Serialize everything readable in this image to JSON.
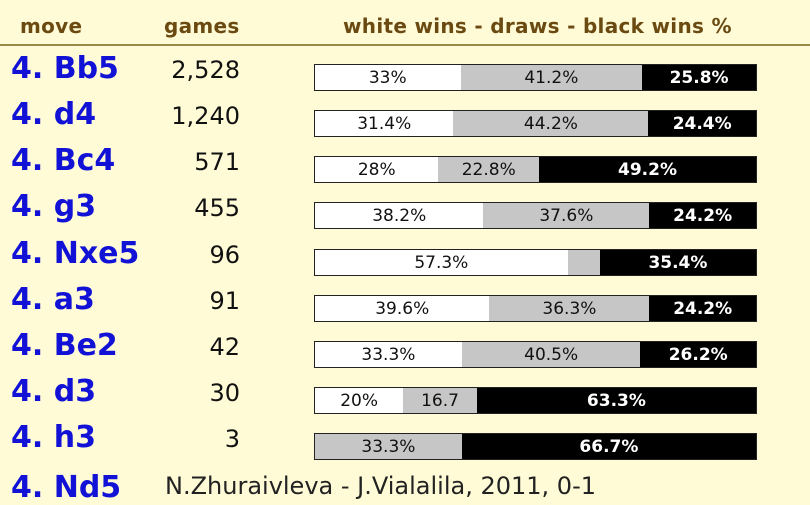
{
  "header": {
    "move": "move",
    "games": "games",
    "bars": "white wins - draws - black wins %"
  },
  "colors": {
    "background": "#fffbd6",
    "header_text": "#6b4a12",
    "move_link": "#1212d6",
    "white_segment": "#ffffff",
    "draw_segment": "#c6c6c6",
    "black_segment": "#000000"
  },
  "rows": [
    {
      "move": "4. Bb5",
      "games": "2,528",
      "white": 33.0,
      "draw": 41.2,
      "black": 25.8,
      "white_label": "33%",
      "draw_label": "41.2%",
      "black_label": "25.8%"
    },
    {
      "move": "4. d4",
      "games": "1,240",
      "white": 31.4,
      "draw": 44.2,
      "black": 24.4,
      "white_label": "31.4%",
      "draw_label": "44.2%",
      "black_label": "24.4%"
    },
    {
      "move": "4. Bc4",
      "games": "571",
      "white": 28.0,
      "draw": 22.8,
      "black": 49.2,
      "white_label": "28%",
      "draw_label": "22.8%",
      "black_label": "49.2%"
    },
    {
      "move": "4. g3",
      "games": "455",
      "white": 38.2,
      "draw": 37.6,
      "black": 24.2,
      "white_label": "38.2%",
      "draw_label": "37.6%",
      "black_label": "24.2%"
    },
    {
      "move": "4. Nxe5",
      "games": "96",
      "white": 57.3,
      "draw": 7.3,
      "black": 35.4,
      "white_label": "57.3%",
      "draw_label": "",
      "black_label": "35.4%"
    },
    {
      "move": "4. a3",
      "games": "91",
      "white": 39.6,
      "draw": 36.3,
      "black": 24.2,
      "white_label": "39.6%",
      "draw_label": "36.3%",
      "black_label": "24.2%"
    },
    {
      "move": "4. Be2",
      "games": "42",
      "white": 33.3,
      "draw": 40.5,
      "black": 26.2,
      "white_label": "33.3%",
      "draw_label": "40.5%",
      "black_label": "26.2%"
    },
    {
      "move": "4. d3",
      "games": "30",
      "white": 20.0,
      "draw": 16.7,
      "black": 63.3,
      "white_label": "20%",
      "draw_label": "16.7",
      "black_label": "63.3%"
    },
    {
      "move": "4. h3",
      "games": "3",
      "white": 0,
      "draw": 33.3,
      "black": 66.7,
      "white_label": "",
      "draw_label": "33.3%",
      "black_label": "66.7%"
    }
  ],
  "partial_row": {
    "move": "4. Nd5",
    "rest": "N.Zhuraivleva - J.Vialalila, 2011, 0-1"
  }
}
